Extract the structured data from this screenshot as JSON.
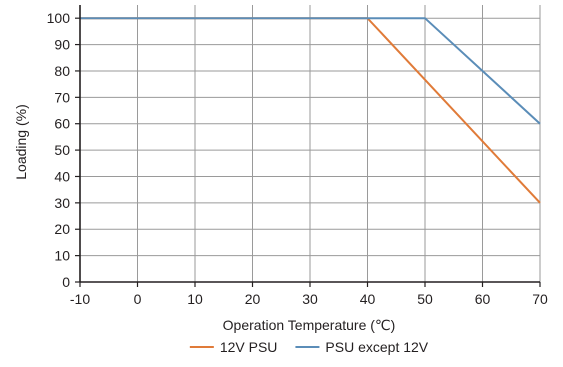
{
  "chart_data": {
    "type": "line",
    "title": "",
    "xlabel": "Operation Temperature (℃)",
    "ylabel": "Loading (%)",
    "xlim": [
      -10,
      70
    ],
    "ylim": [
      0,
      105
    ],
    "xticks": [
      -10,
      0,
      10,
      20,
      30,
      40,
      50,
      60,
      70
    ],
    "yticks": [
      0,
      10,
      20,
      30,
      40,
      50,
      60,
      70,
      80,
      90,
      100
    ],
    "grid": true,
    "legend_position": "bottom",
    "series": [
      {
        "name": "12V PSU",
        "color": "#e07b39",
        "x": [
          -10,
          40,
          70
        ],
        "y": [
          100,
          100,
          30
        ]
      },
      {
        "name": "PSU except 12V",
        "color": "#5b8db8",
        "x": [
          -10,
          50,
          70
        ],
        "y": [
          100,
          100,
          60
        ]
      }
    ]
  }
}
